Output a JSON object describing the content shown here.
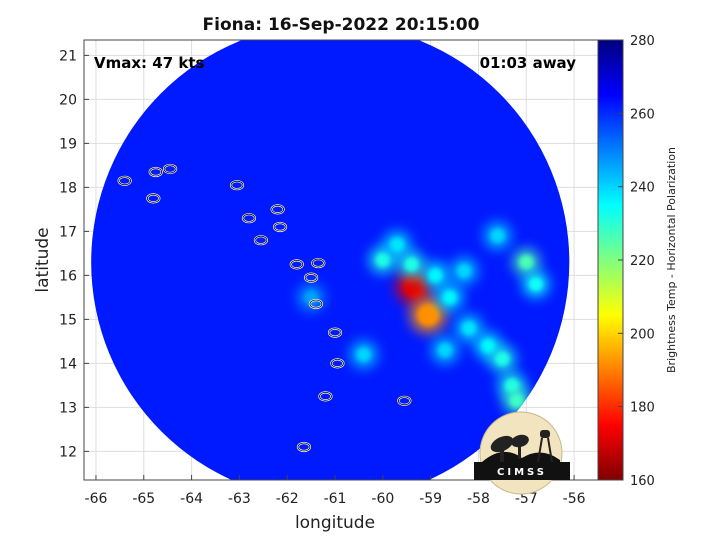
{
  "chart_data": {
    "type": "heatmap",
    "title": "Fiona: 16-Sep-2022 20:15:00",
    "xlabel": "longitude",
    "ylabel": "latitude",
    "xlim": [
      -66.25,
      -55.5
    ],
    "ylim": [
      11.35,
      21.35
    ],
    "xticks": [
      -66,
      -65,
      -64,
      -63,
      -62,
      -61,
      -60,
      -59,
      -58,
      -57,
      -56
    ],
    "yticks": [
      12,
      13,
      14,
      15,
      16,
      17,
      18,
      19,
      20,
      21
    ],
    "grid": true,
    "annotations": {
      "left": "Vmax: 47 kts",
      "right": "01:03 away"
    },
    "colorbar": {
      "label": "Brightness Temp - Horizontal Polarization",
      "range": [
        160,
        280
      ],
      "ticks": [
        160,
        180,
        200,
        220,
        240,
        260,
        280
      ],
      "colormap": "jet"
    },
    "swath": {
      "center": [
        -61.1,
        16.3
      ],
      "radius_deg": 5.0,
      "background_value": 262
    },
    "features": [
      {
        "lon": -59.35,
        "lat": 15.75,
        "value": 172
      },
      {
        "lon": -59.05,
        "lat": 15.1,
        "value": 192
      },
      {
        "lon": -60.0,
        "lat": 16.35,
        "value": 232
      },
      {
        "lon": -59.7,
        "lat": 16.7,
        "value": 238
      },
      {
        "lon": -59.4,
        "lat": 16.25,
        "value": 232
      },
      {
        "lon": -58.9,
        "lat": 16.0,
        "value": 236
      },
      {
        "lon": -58.6,
        "lat": 15.5,
        "value": 236
      },
      {
        "lon": -58.2,
        "lat": 14.8,
        "value": 238
      },
      {
        "lon": -57.8,
        "lat": 14.4,
        "value": 236
      },
      {
        "lon": -57.5,
        "lat": 14.1,
        "value": 232
      },
      {
        "lon": -57.3,
        "lat": 13.5,
        "value": 232
      },
      {
        "lon": -57.2,
        "lat": 13.15,
        "value": 228
      },
      {
        "lon": -57.0,
        "lat": 16.3,
        "value": 226
      },
      {
        "lon": -56.8,
        "lat": 15.8,
        "value": 234
      },
      {
        "lon": -57.6,
        "lat": 16.9,
        "value": 240
      },
      {
        "lon": -58.3,
        "lat": 16.1,
        "value": 240
      },
      {
        "lon": -60.4,
        "lat": 14.2,
        "value": 240
      },
      {
        "lon": -61.5,
        "lat": 15.5,
        "value": 246
      },
      {
        "lon": -58.7,
        "lat": 14.3,
        "value": 240
      }
    ],
    "islands": [
      [
        -65.4,
        18.15
      ],
      [
        -64.75,
        18.35
      ],
      [
        -64.45,
        18.42
      ],
      [
        -64.8,
        17.75
      ],
      [
        -63.05,
        18.05
      ],
      [
        -62.8,
        17.3
      ],
      [
        -62.2,
        17.5
      ],
      [
        -62.15,
        17.1
      ],
      [
        -62.55,
        16.8
      ],
      [
        -61.8,
        16.25
      ],
      [
        -61.35,
        16.28
      ],
      [
        -61.5,
        15.95
      ],
      [
        -61.4,
        15.35
      ],
      [
        -61.0,
        14.7
      ],
      [
        -60.95,
        14.0
      ],
      [
        -61.2,
        13.25
      ],
      [
        -61.65,
        12.1
      ],
      [
        -59.55,
        13.15
      ]
    ]
  }
}
